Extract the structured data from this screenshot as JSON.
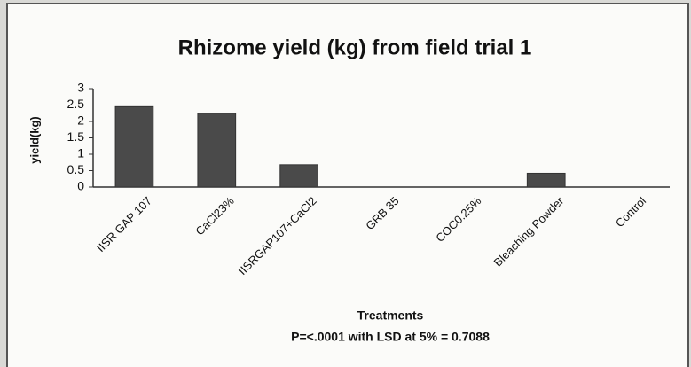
{
  "chart_data": {
    "type": "bar",
    "title": "Rhizome yield (kg) from field trial 1",
    "y_label": "yield(kg)",
    "x_label": "Treatments",
    "annotation": "P=<.0001  with LSD at 5%  = 0.7088",
    "categories": [
      "IISR GAP 107",
      "CaCl23%",
      "IISRGAP107+CaCl2",
      "GRB 35",
      "COC0.25%",
      "Bleaching Powder",
      "Control"
    ],
    "values": [
      2.45,
      2.25,
      0.68,
      0,
      0,
      0.42,
      0
    ],
    "color": "#4a4a4a",
    "ylim": [
      0,
      3
    ],
    "yticks": [
      0,
      0.5,
      1,
      1.5,
      2,
      2.5,
      3
    ],
    "grid": false
  }
}
